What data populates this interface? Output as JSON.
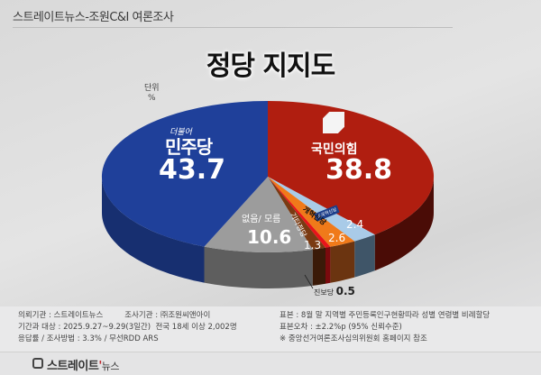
{
  "header": {
    "source_title": "스트레이트뉴스-조원C&I 여론조사"
  },
  "title": "정당 지지도",
  "unit": {
    "label": "단위",
    "symbol": "%"
  },
  "labels": {
    "minjoo_sub": "더불어",
    "minjoo_name": "민주당",
    "minjoo_val": "43.7",
    "ppp_name": "국민의힘",
    "ppp_val": "38.8",
    "none_name": "없음/ 모름",
    "none_val": "10.6",
    "rebuild_name": "조국혁신당",
    "rebuild_val": "2.4",
    "reform_name": "개혁신당",
    "reform_val": "2.6",
    "other_name": "기타정당",
    "other_val": "1.3",
    "jinbo_name": "진보당",
    "jinbo_val": "0.5"
  },
  "chart_data": {
    "type": "pie",
    "title": "정당 지지도",
    "unit": "%",
    "slices": [
      {
        "label": "국민의힘",
        "value": 38.8,
        "color": "#b01e10",
        "side": "#4a0c06"
      },
      {
        "label": "조국혁신당",
        "value": 2.4,
        "color": "#a9cbe8",
        "side": "#3f5568"
      },
      {
        "label": "개혁신당",
        "value": 2.6,
        "color": "#f07a1a",
        "side": "#6b3410"
      },
      {
        "label": "진보당",
        "value": 0.5,
        "color": "#e8141a",
        "side": "#7a0a0d"
      },
      {
        "label": "기타정당",
        "value": 1.3,
        "color": "#7a3a12",
        "side": "#3a1a08"
      },
      {
        "label": "없음/ 모름",
        "value": 10.6,
        "color": "#9c9c9c",
        "side": "#5e5e5e"
      },
      {
        "label": "더불어민주당",
        "value": 43.7,
        "color": "#1f409a",
        "side": "#172f70"
      }
    ]
  },
  "footer": {
    "left": [
      [
        "의뢰기관 : 스트레이트뉴스",
        "조사기관 : ㈜조원씨앤아이"
      ],
      [
        "기간과 대상 : 2025.9.27~9.29(3일간)",
        "전국 18세 이상  2,002명"
      ],
      [
        "응답률 / 조사방법 : 3.3% / 무선RDD ARS",
        ""
      ]
    ],
    "right": [
      "표본 : 8월 말 지역별 주민등록인구현황따라 성별 연령별 비례할당",
      "표본오차 : ±2.2%p (95% 신뢰수준)",
      "※ 중앙선거여론조사심의위원회 홈페이지 참조"
    ]
  },
  "brand": {
    "name": "스트레이트",
    "tail": "뉴스"
  }
}
